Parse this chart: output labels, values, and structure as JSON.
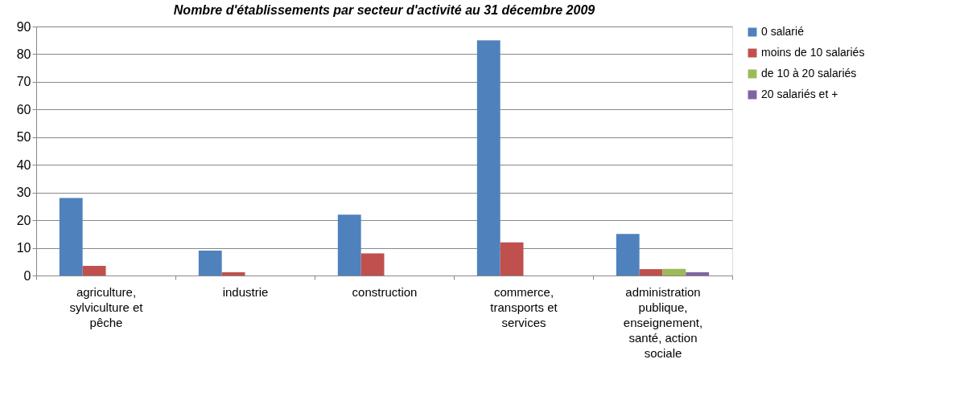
{
  "chart_data": {
    "type": "bar",
    "title": "Nombre d'établissements par secteur d'activité au 31 décembre 2009",
    "categories": [
      "agriculture, sylviculture et pêche",
      "industrie",
      "construction",
      "commerce, transports et services",
      "administration publique, enseignement, santé, action sociale"
    ],
    "series": [
      {
        "name": "0 salarié",
        "color": "#4f81bd",
        "values": [
          28,
          9,
          22,
          85,
          15
        ]
      },
      {
        "name": "moins de 10 salariés",
        "color": "#c0504d",
        "values": [
          3.5,
          1.2,
          8,
          12,
          2.3
        ]
      },
      {
        "name": "de 10 à 20 salariés",
        "color": "#9bbb59",
        "values": [
          null,
          null,
          null,
          null,
          2.4
        ]
      },
      {
        "name": "20 salariés et +",
        "color": "#8064a2",
        "values": [
          null,
          null,
          null,
          null,
          1.2
        ]
      }
    ],
    "ylim": [
      0,
      90
    ],
    "yticks": [
      0,
      10,
      20,
      30,
      40,
      50,
      60,
      70,
      80,
      90
    ],
    "grid": "y",
    "legend": "right"
  }
}
